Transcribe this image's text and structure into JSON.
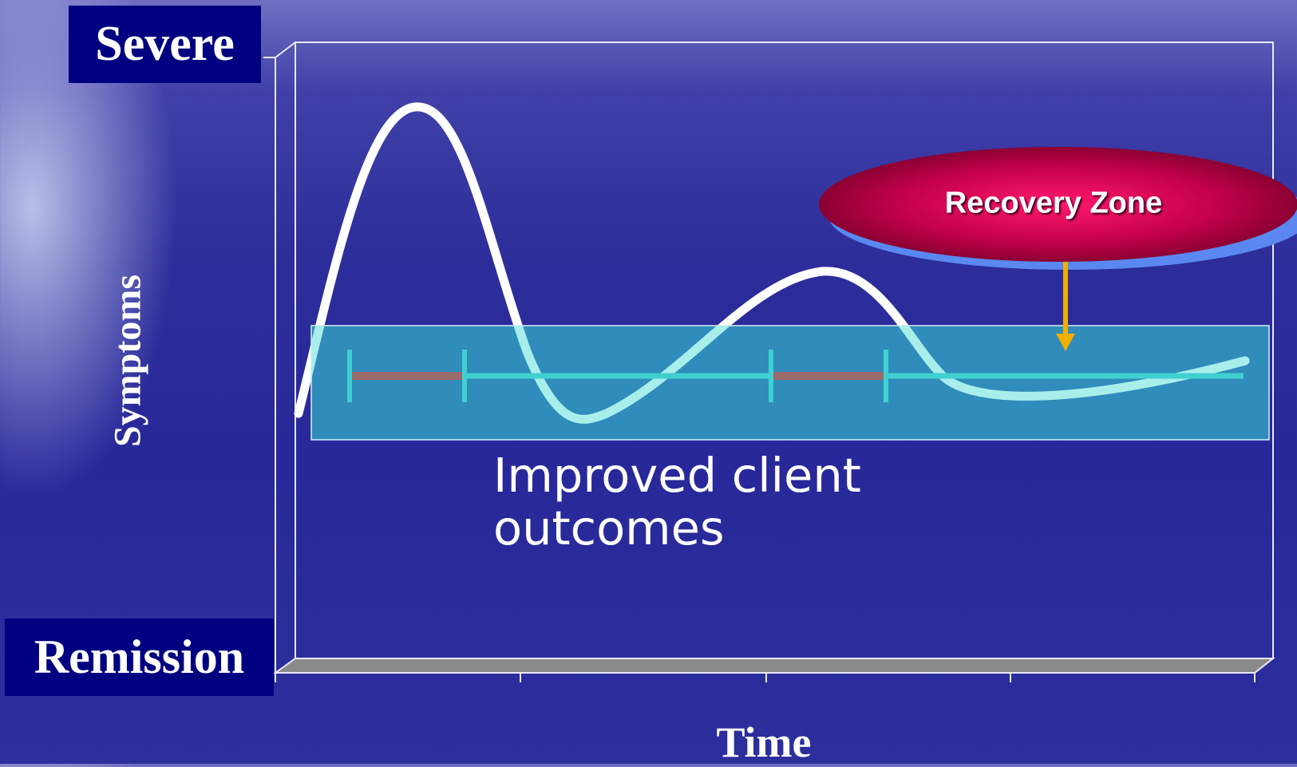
{
  "labels": {
    "severe": "Severe",
    "remission": "Remission",
    "y_axis": "Symptoms",
    "x_axis": "Time",
    "recovery_zone": "Recovery Zone",
    "outcome_line1": "Improved client",
    "outcome_line2": "outcomes"
  },
  "colors": {
    "label_box": "#000080",
    "symptom_curve": "#ffffff",
    "recovery_band": "#33b3c8",
    "timeline": "#40d0d0",
    "episode_segment": "#9a6a6a",
    "recovery_ellipse": "#b00040",
    "arrow": "#f0b000"
  }
}
